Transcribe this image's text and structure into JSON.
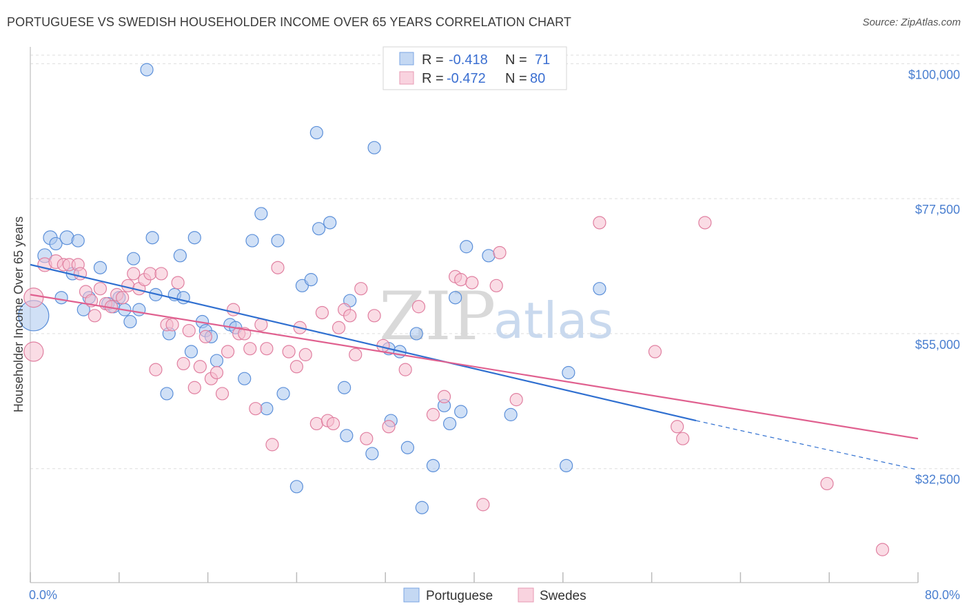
{
  "title": "PORTUGUESE VS SWEDISH HOUSEHOLDER INCOME OVER 65 YEARS CORRELATION CHART",
  "source": "Source: ZipAtlas.com",
  "watermark": {
    "zip": "ZIP",
    "atlas": "atlas"
  },
  "colors": {
    "blue_fill": "#a9c6ef",
    "blue_stroke": "#5b8fd9",
    "blue_line": "#2f6fd0",
    "pink_fill": "#f5bfd0",
    "pink_stroke": "#e07fa0",
    "pink_line": "#e0608f",
    "grid": "#dddddd",
    "axis_text": "#4a7fd0"
  },
  "legend": {
    "rows": [
      {
        "r_label": "R =",
        "r_value": "-0.418",
        "n_label": "N =",
        "n_value": "71",
        "color": "blue"
      },
      {
        "r_label": "R =",
        "r_value": "-0.472",
        "n_label": "N =",
        "n_value": "80",
        "color": "pink"
      }
    ]
  },
  "bottom_legend": [
    {
      "label": "Portuguese",
      "color": "blue"
    },
    {
      "label": "Swedes",
      "color": "pink"
    }
  ],
  "chart_data": {
    "type": "scatter",
    "xlabel": "",
    "ylabel": "Householder Income Over 65 years",
    "xlim": [
      0,
      80
    ],
    "ylim": [
      13500,
      102000
    ],
    "x_tick_labels": [
      "0.0%",
      "80.0%"
    ],
    "y_ticks": [
      32500,
      55000,
      77500,
      100000
    ],
    "y_tick_labels": [
      "$32,500",
      "$55,000",
      "$77,500",
      "$100,000"
    ],
    "grid": true,
    "legend_position": "top-center",
    "series": [
      {
        "name": "Portuguese",
        "color": "blue",
        "trend": {
          "x0": 0,
          "y0": 66500,
          "x1": 60,
          "y1": 40500,
          "dashed_to_x": 80,
          "dashed_to_y": 32300
        },
        "points": [
          [
            0.3,
            58000,
            22
          ],
          [
            1.3,
            68000,
            10
          ],
          [
            1.8,
            71000,
            10
          ],
          [
            2.3,
            70000,
            9
          ],
          [
            3.3,
            71000,
            10
          ],
          [
            4.3,
            70500,
            9
          ],
          [
            2.8,
            61000,
            9
          ],
          [
            3.8,
            65000,
            9
          ],
          [
            4.8,
            59000,
            9
          ],
          [
            5.3,
            61000,
            9
          ],
          [
            6.3,
            66000,
            9
          ],
          [
            7.0,
            60000,
            9
          ],
          [
            7.5,
            59500,
            9
          ],
          [
            8.0,
            61000,
            9
          ],
          [
            8.5,
            59000,
            9
          ],
          [
            9.0,
            57000,
            9
          ],
          [
            9.3,
            67500,
            9
          ],
          [
            9.8,
            59000,
            9
          ],
          [
            10.5,
            99000,
            9
          ],
          [
            11.0,
            71000,
            9
          ],
          [
            11.3,
            61500,
            9
          ],
          [
            12.3,
            45000,
            9
          ],
          [
            12.5,
            55000,
            9
          ],
          [
            13.0,
            61500,
            9
          ],
          [
            13.5,
            68000,
            9
          ],
          [
            13.8,
            61000,
            9
          ],
          [
            14.5,
            52000,
            9
          ],
          [
            14.8,
            71000,
            9
          ],
          [
            15.5,
            57000,
            9
          ],
          [
            15.8,
            55500,
            9
          ],
          [
            16.3,
            54500,
            9
          ],
          [
            16.8,
            50500,
            9
          ],
          [
            18.0,
            56500,
            9
          ],
          [
            18.5,
            56000,
            9
          ],
          [
            19.3,
            47500,
            9
          ],
          [
            20.0,
            70500,
            9
          ],
          [
            20.8,
            75000,
            9
          ],
          [
            21.3,
            42500,
            9
          ],
          [
            22.3,
            70500,
            9
          ],
          [
            22.8,
            45000,
            9
          ],
          [
            24.0,
            29500,
            9
          ],
          [
            24.5,
            63000,
            9
          ],
          [
            25.3,
            64000,
            9
          ],
          [
            25.8,
            88500,
            9
          ],
          [
            26.0,
            72500,
            9
          ],
          [
            27.0,
            73500,
            9
          ],
          [
            28.3,
            46000,
            9
          ],
          [
            28.5,
            38000,
            9
          ],
          [
            28.8,
            60500,
            9
          ],
          [
            30.8,
            35000,
            9
          ],
          [
            31.0,
            86000,
            9
          ],
          [
            32.3,
            52500,
            9
          ],
          [
            32.5,
            40500,
            9
          ],
          [
            33.3,
            52000,
            9
          ],
          [
            34.0,
            36000,
            9
          ],
          [
            34.8,
            55000,
            9
          ],
          [
            35.3,
            26000,
            9
          ],
          [
            36.3,
            33000,
            9
          ],
          [
            37.3,
            43000,
            9
          ],
          [
            37.8,
            40000,
            9
          ],
          [
            38.3,
            61000,
            9
          ],
          [
            38.8,
            42000,
            9
          ],
          [
            39.3,
            69500,
            9
          ],
          [
            41.3,
            68000,
            9
          ],
          [
            43.3,
            41500,
            9
          ],
          [
            48.3,
            33000,
            9
          ],
          [
            48.5,
            48500,
            9
          ],
          [
            51.3,
            62500,
            9
          ]
        ]
      },
      {
        "name": "Swedes",
        "color": "pink",
        "trend": {
          "x0": 0,
          "y0": 61500,
          "x1": 80,
          "y1": 37500
        },
        "points": [
          [
            0.3,
            61000,
            14
          ],
          [
            0.3,
            52000,
            14
          ],
          [
            1.3,
            66500,
            10
          ],
          [
            2.3,
            67000,
            10
          ],
          [
            3.0,
            66500,
            9
          ],
          [
            3.5,
            66500,
            9
          ],
          [
            4.3,
            66500,
            9
          ],
          [
            4.5,
            65000,
            9
          ],
          [
            5.0,
            62000,
            9
          ],
          [
            5.5,
            60500,
            9
          ],
          [
            5.8,
            58000,
            9
          ],
          [
            6.3,
            62500,
            9
          ],
          [
            6.8,
            60000,
            9
          ],
          [
            7.3,
            59500,
            9
          ],
          [
            7.8,
            61500,
            9
          ],
          [
            8.3,
            61000,
            9
          ],
          [
            8.8,
            63000,
            9
          ],
          [
            9.3,
            65000,
            9
          ],
          [
            9.8,
            62500,
            9
          ],
          [
            10.3,
            64000,
            9
          ],
          [
            10.8,
            65000,
            9
          ],
          [
            11.3,
            49000,
            9
          ],
          [
            11.8,
            65000,
            9
          ],
          [
            12.3,
            56500,
            9
          ],
          [
            12.8,
            56500,
            9
          ],
          [
            13.3,
            63500,
            9
          ],
          [
            13.8,
            50000,
            9
          ],
          [
            14.3,
            55500,
            9
          ],
          [
            14.8,
            46000,
            9
          ],
          [
            15.3,
            49500,
            9
          ],
          [
            15.8,
            54500,
            9
          ],
          [
            16.3,
            47500,
            9
          ],
          [
            16.8,
            48500,
            9
          ],
          [
            17.3,
            45000,
            9
          ],
          [
            17.8,
            52000,
            9
          ],
          [
            18.3,
            59000,
            9
          ],
          [
            18.8,
            55000,
            9
          ],
          [
            19.3,
            55000,
            9
          ],
          [
            19.8,
            52500,
            9
          ],
          [
            20.3,
            42500,
            9
          ],
          [
            20.8,
            56500,
            9
          ],
          [
            21.3,
            52500,
            9
          ],
          [
            21.8,
            36500,
            9
          ],
          [
            22.3,
            66000,
            9
          ],
          [
            23.3,
            52000,
            9
          ],
          [
            24.0,
            49500,
            9
          ],
          [
            24.3,
            56000,
            9
          ],
          [
            24.8,
            51500,
            9
          ],
          [
            25.8,
            40000,
            9
          ],
          [
            26.3,
            58500,
            9
          ],
          [
            26.8,
            40500,
            9
          ],
          [
            27.3,
            40000,
            9
          ],
          [
            27.8,
            56000,
            9
          ],
          [
            28.3,
            59000,
            9
          ],
          [
            28.8,
            58000,
            9
          ],
          [
            29.3,
            51500,
            9
          ],
          [
            29.8,
            62500,
            9
          ],
          [
            30.3,
            37500,
            9
          ],
          [
            31.0,
            58000,
            9
          ],
          [
            31.8,
            53000,
            9
          ],
          [
            32.3,
            39500,
            9
          ],
          [
            33.8,
            49000,
            9
          ],
          [
            35.0,
            59500,
            9
          ],
          [
            36.3,
            41500,
            9
          ],
          [
            37.3,
            44500,
            9
          ],
          [
            38.3,
            64500,
            9
          ],
          [
            38.8,
            64000,
            9
          ],
          [
            39.8,
            63500,
            9
          ],
          [
            40.8,
            26500,
            9
          ],
          [
            42.0,
            63000,
            9
          ],
          [
            42.3,
            68500,
            9
          ],
          [
            43.8,
            44000,
            9
          ],
          [
            51.3,
            73500,
            9
          ],
          [
            56.3,
            52000,
            9
          ],
          [
            58.3,
            39500,
            9
          ],
          [
            58.8,
            37500,
            9
          ],
          [
            60.8,
            73500,
            9
          ],
          [
            71.8,
            30000,
            9
          ],
          [
            76.8,
            19000,
            9
          ]
        ]
      }
    ]
  }
}
